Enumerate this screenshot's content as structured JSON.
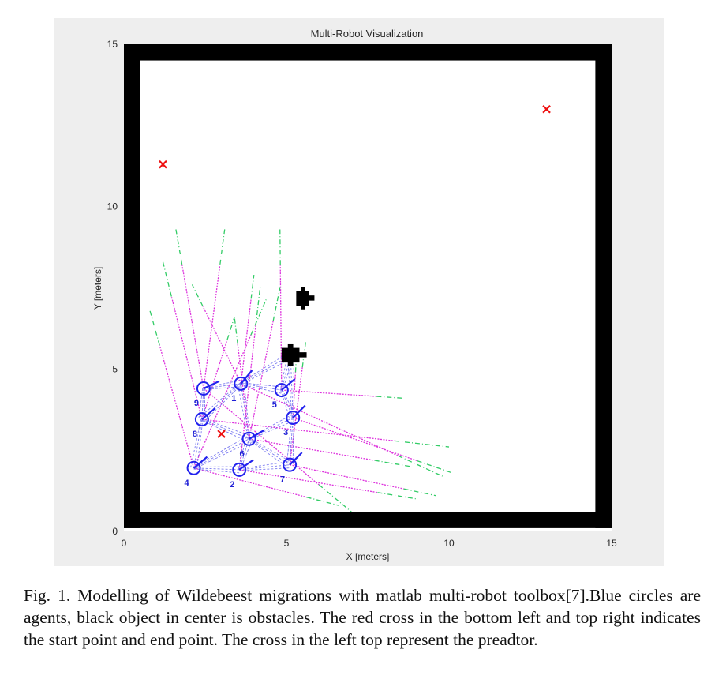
{
  "chart_data": {
    "type": "scatter",
    "title": "Multi-Robot Visualization",
    "xlabel": "X [meters]",
    "ylabel": "Y [meters]",
    "xlim": [
      0,
      15
    ],
    "ylim": [
      0,
      15
    ],
    "xticks": [
      "0",
      "5",
      "10",
      "15"
    ],
    "yticks": [
      "0",
      "5",
      "10",
      "15"
    ],
    "colors": {
      "agent": "#2222ee",
      "target": "#ee1111",
      "lidar": "#dd33dd",
      "lidar_far": "#33cc66",
      "range_line": "#6666ee",
      "wall": "#000000"
    },
    "walls": {
      "inner_x": [
        0.5,
        14.5
      ],
      "inner_y": [
        0.6,
        14.5
      ],
      "thickness_m": 0.5
    },
    "agents": [
      {
        "id": "1",
        "x": 3.6,
        "y": 4.55,
        "heading_deg": 50
      },
      {
        "id": "2",
        "x": 3.55,
        "y": 1.9,
        "heading_deg": 35
      },
      {
        "id": "3",
        "x": 5.2,
        "y": 3.5,
        "heading_deg": 45
      },
      {
        "id": "4",
        "x": 2.15,
        "y": 1.95,
        "heading_deg": 40
      },
      {
        "id": "5",
        "x": 4.85,
        "y": 4.35,
        "heading_deg": 40
      },
      {
        "id": "6",
        "x": 3.85,
        "y": 2.85,
        "heading_deg": 30
      },
      {
        "id": "7",
        "x": 5.1,
        "y": 2.05,
        "heading_deg": 45
      },
      {
        "id": "8",
        "x": 2.4,
        "y": 3.45,
        "heading_deg": 40
      },
      {
        "id": "9",
        "x": 2.45,
        "y": 4.4,
        "heading_deg": 25
      }
    ],
    "markers": [
      {
        "name": "start",
        "x": 3.0,
        "y": 3.0
      },
      {
        "name": "end",
        "x": 13.0,
        "y": 13.0
      },
      {
        "name": "predator",
        "x": 1.2,
        "y": 11.3
      }
    ],
    "obstacles": [
      {
        "name": "obstacle-upper",
        "x": [
          5.3,
          5.7
        ],
        "y": [
          6.95,
          7.4
        ]
      },
      {
        "name": "obstacle-lower",
        "x": [
          4.85,
          5.4
        ],
        "y": [
          5.2,
          5.65
        ]
      }
    ],
    "lidar_rays": [
      {
        "from": "4",
        "to": [
          0.8,
          6.8
        ]
      },
      {
        "from": "4",
        "to": [
          6.6,
          0.8
        ]
      },
      {
        "from": "4",
        "to": [
          4.4,
          7.2
        ]
      },
      {
        "from": "8",
        "to": [
          1.2,
          8.3
        ]
      },
      {
        "from": "8",
        "to": [
          10.0,
          2.6
        ]
      },
      {
        "from": "8",
        "to": [
          3.4,
          6.6
        ]
      },
      {
        "from": "9",
        "to": [
          1.6,
          9.3
        ]
      },
      {
        "from": "9",
        "to": [
          3.1,
          9.3
        ]
      },
      {
        "from": "9",
        "to": [
          7.0,
          0.6
        ]
      },
      {
        "from": "1",
        "to": [
          4.0,
          7.9
        ]
      },
      {
        "from": "1",
        "to": [
          2.1,
          7.6
        ]
      },
      {
        "from": "1",
        "to": [
          9.8,
          1.7
        ]
      },
      {
        "from": "5",
        "to": [
          8.6,
          4.1
        ]
      },
      {
        "from": "5",
        "to": [
          4.8,
          9.3
        ]
      },
      {
        "from": "6",
        "to": [
          3.4,
          6.6
        ]
      },
      {
        "from": "6",
        "to": [
          8.8,
          2.0
        ]
      },
      {
        "from": "6",
        "to": [
          4.8,
          7.5
        ]
      },
      {
        "from": "3",
        "to": [
          10.1,
          1.8
        ]
      },
      {
        "from": "3",
        "to": [
          5.3,
          5.3
        ]
      },
      {
        "from": "7",
        "to": [
          9.6,
          1.1
        ]
      },
      {
        "from": "7",
        "to": [
          5.6,
          5.9
        ]
      },
      {
        "from": "2",
        "to": [
          4.2,
          7.6
        ]
      },
      {
        "from": "2",
        "to": [
          9.0,
          1.0
        ]
      }
    ],
    "neighbor_links": [
      [
        "9",
        "1"
      ],
      [
        "9",
        "8"
      ],
      [
        "8",
        "6"
      ],
      [
        "8",
        "4"
      ],
      [
        "4",
        "2"
      ],
      [
        "4",
        "6"
      ],
      [
        "2",
        "6"
      ],
      [
        "2",
        "7"
      ],
      [
        "6",
        "7"
      ],
      [
        "6",
        "3"
      ],
      [
        "6",
        "1"
      ],
      [
        "1",
        "5"
      ],
      [
        "5",
        "3"
      ],
      [
        "3",
        "7"
      ],
      [
        "1",
        "8"
      ],
      [
        "5",
        "obstacle-lower"
      ],
      [
        "3",
        "obstacle-lower"
      ],
      [
        "1",
        "obstacle-lower"
      ]
    ]
  },
  "caption": "Fig. 1.  Modelling of Wildebeest migrations with matlab multi-robot toolbox[7].Blue circles are agents, black object in center is obstacles. The red cross in the bottom left and top right indicates the start point and end point. The cross in the left top represent the preadtor."
}
